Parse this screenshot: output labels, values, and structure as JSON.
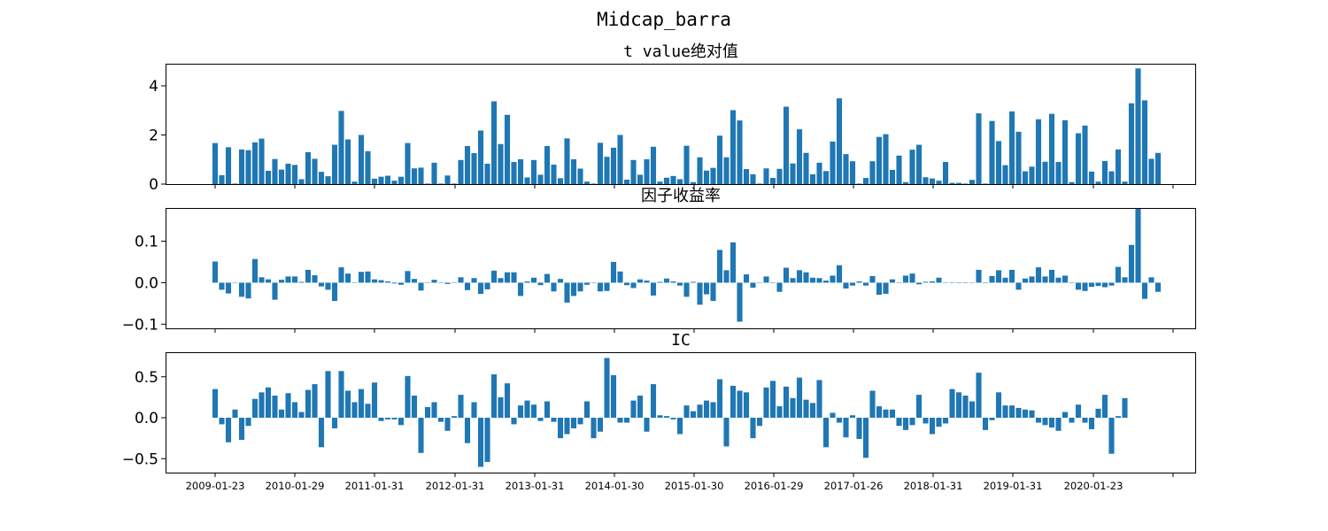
{
  "title": "Midcap_barra",
  "colors": {
    "bar": "#1f77b4",
    "axis": "#000000"
  },
  "chart_data": [
    {
      "type": "bar",
      "title": "t value绝对值",
      "ylim": [
        0,
        4.9
      ],
      "yticks": [
        0,
        2,
        4
      ],
      "yticklabels": [
        "0",
        "2",
        "4"
      ],
      "values": [
        1.67,
        0.36,
        1.5,
        0.02,
        1.41,
        1.38,
        1.7,
        1.85,
        0.54,
        1.02,
        0.59,
        0.83,
        0.78,
        0.2,
        1.3,
        1.03,
        0.5,
        0.32,
        1.6,
        2.98,
        1.82,
        0.1,
        2.0,
        1.34,
        0.22,
        0.3,
        0.34,
        0.14,
        0.3,
        1.67,
        0.64,
        0.67,
        0.02,
        0.87,
        0.02,
        0.35,
        0.02,
        0.98,
        1.55,
        1.26,
        2.18,
        0.83,
        3.37,
        1.63,
        2.82,
        0.9,
        1.01,
        0.27,
        0.98,
        0.38,
        1.55,
        0.79,
        0.24,
        1.86,
        1.01,
        0.63,
        0.1,
        0.02,
        1.68,
        1.11,
        1.48,
        2.0,
        0.18,
        0.98,
        0.38,
        1.01,
        1.52,
        0.1,
        0.26,
        0.33,
        0.2,
        1.56,
        0.08,
        1.09,
        0.55,
        0.66,
        1.97,
        1.09,
        3.01,
        2.59,
        0.61,
        0.4,
        0.02,
        0.64,
        0.25,
        0.62,
        3.15,
        0.84,
        2.23,
        1.27,
        0.4,
        0.87,
        0.53,
        1.73,
        3.49,
        1.22,
        0.93,
        0.02,
        0.25,
        0.93,
        1.92,
        2.03,
        0.58,
        1.16,
        0.08,
        1.4,
        1.6,
        0.28,
        0.23,
        0.14,
        0.9,
        0.05,
        0.05,
        0.02,
        0.17,
        2.88,
        0.02,
        2.57,
        1.75,
        0.77,
        2.96,
        2.13,
        0.52,
        0.71,
        2.64,
        0.91,
        2.86,
        0.9,
        2.6,
        0.08,
        2.07,
        2.38,
        0.51,
        0.1,
        0.94,
        0.52,
        1.41,
        0.1,
        3.29,
        4.71,
        3.41,
        1.03,
        1.27
      ]
    },
    {
      "type": "bar",
      "title": "因子收益率",
      "ylim": [
        -0.11,
        0.18
      ],
      "yticks": [
        0.1,
        0.0,
        -0.1
      ],
      "yticklabels": [
        "0.1",
        "0.0",
        "−0.1"
      ],
      "values": [
        0.051,
        -0.017,
        -0.026,
        0.0,
        -0.034,
        -0.038,
        0.057,
        0.013,
        0.008,
        -0.041,
        0.007,
        0.015,
        0.015,
        0.002,
        0.031,
        0.018,
        -0.009,
        -0.017,
        -0.044,
        0.037,
        0.022,
        0.001,
        0.026,
        0.027,
        0.008,
        0.006,
        0.003,
        -0.002,
        -0.005,
        0.028,
        0.009,
        -0.019,
        0.001,
        0.007,
        0.001,
        -0.003,
        0.001,
        0.013,
        -0.018,
        0.011,
        -0.027,
        -0.016,
        0.029,
        0.011,
        0.025,
        0.025,
        -0.032,
        0.003,
        0.012,
        -0.006,
        0.021,
        -0.021,
        0.009,
        -0.048,
        -0.032,
        -0.021,
        -0.005,
        0.001,
        -0.021,
        -0.02,
        0.05,
        0.027,
        -0.006,
        -0.013,
        0.008,
        0.005,
        -0.031,
        0.002,
        0.01,
        0.003,
        -0.007,
        -0.034,
        0.002,
        -0.053,
        -0.028,
        -0.044,
        0.079,
        0.03,
        0.097,
        -0.094,
        0.02,
        -0.012,
        0.0,
        0.015,
        -0.001,
        -0.022,
        0.036,
        0.011,
        0.03,
        0.025,
        0.012,
        0.011,
        0.005,
        0.017,
        0.042,
        -0.014,
        -0.007,
        0.003,
        -0.007,
        0.016,
        -0.029,
        -0.027,
        0.008,
        0.001,
        0.017,
        0.022,
        -0.004,
        0.002,
        0.003,
        0.012,
        0.0,
        0.001,
        -0.001,
        -0.001,
        0.0,
        0.031,
        -0.001,
        0.016,
        0.03,
        0.012,
        0.031,
        -0.017,
        0.01,
        0.015,
        0.037,
        0.015,
        0.031,
        0.012,
        0.017,
        -0.001,
        -0.017,
        -0.02,
        -0.01,
        -0.008,
        -0.011,
        -0.007,
        0.038,
        0.013,
        0.091,
        0.178,
        -0.039,
        0.013,
        -0.022
      ]
    },
    {
      "type": "bar",
      "title": "IC",
      "ylim": [
        -0.67,
        0.8
      ],
      "yticks": [
        0.5,
        0.0,
        -0.5
      ],
      "yticklabels": [
        "0.5",
        "0.0",
        "−0.5"
      ],
      "values": [
        0.35,
        -0.08,
        -0.3,
        0.1,
        -0.27,
        -0.1,
        0.23,
        0.31,
        0.37,
        0.27,
        0.1,
        0.3,
        0.19,
        0.07,
        0.34,
        0.41,
        -0.36,
        0.57,
        -0.13,
        0.57,
        0.33,
        0.19,
        0.35,
        0.17,
        0.43,
        -0.04,
        -0.02,
        -0.02,
        -0.09,
        0.51,
        0.27,
        -0.43,
        0.13,
        0.19,
        -0.05,
        -0.16,
        0.02,
        0.28,
        -0.31,
        0.19,
        -0.6,
        -0.54,
        0.53,
        0.25,
        0.42,
        -0.08,
        0.15,
        0.21,
        0.16,
        -0.04,
        0.2,
        -0.05,
        -0.25,
        -0.2,
        -0.13,
        -0.08,
        0.2,
        -0.25,
        -0.17,
        0.73,
        0.52,
        -0.06,
        -0.06,
        0.21,
        0.27,
        -0.17,
        0.41,
        0.03,
        0.02,
        -0.02,
        -0.2,
        0.15,
        0.08,
        0.16,
        0.21,
        0.19,
        0.47,
        -0.35,
        0.39,
        0.33,
        0.31,
        -0.25,
        -0.1,
        0.37,
        0.45,
        0.14,
        0.38,
        0.24,
        0.49,
        0.22,
        0.18,
        0.46,
        -0.36,
        0.06,
        -0.06,
        -0.24,
        0.03,
        -0.26,
        -0.49,
        0.33,
        0.14,
        0.1,
        0.1,
        -0.1,
        -0.15,
        -0.09,
        0.28,
        -0.07,
        -0.2,
        -0.11,
        -0.07,
        0.35,
        0.31,
        0.27,
        0.2,
        0.55,
        -0.15,
        -0.03,
        0.31,
        0.15,
        0.15,
        0.12,
        0.1,
        0.09,
        -0.06,
        -0.09,
        -0.12,
        -0.16,
        0.07,
        -0.06,
        0.16,
        -0.06,
        -0.14,
        0.11,
        0.28,
        -0.44,
        0.02,
        0.24
      ]
    }
  ],
  "xticklabels": [
    "2009-01-23",
    "2010-01-29",
    "2011-01-31",
    "2012-01-31",
    "2013-01-31",
    "2014-01-30",
    "2015-01-30",
    "2016-01-29",
    "2017-01-26",
    "2018-01-31",
    "2019-01-31",
    "2020-01-23",
    ""
  ]
}
